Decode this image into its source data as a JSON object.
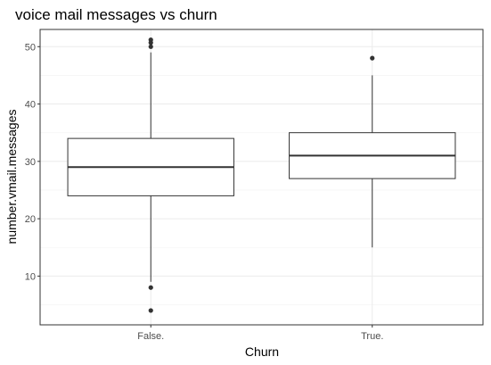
{
  "chart_data": {
    "type": "boxplot",
    "title": "voice mail messages vs churn",
    "xlabel": "Churn",
    "ylabel": "number.vmail.messages",
    "ylim": [
      1.5,
      53
    ],
    "y_ticks": [
      10,
      20,
      30,
      40,
      50
    ],
    "grid": true,
    "categories": [
      "False.",
      "True."
    ],
    "boxes": [
      {
        "category": "False.",
        "whisker_low": 9,
        "q1": 24,
        "median": 29,
        "q3": 34,
        "whisker_high": 49,
        "outliers": [
          4,
          8,
          50,
          50.7,
          51.2
        ]
      },
      {
        "category": "True.",
        "whisker_low": 15,
        "q1": 27,
        "median": 31,
        "q3": 35,
        "whisker_high": 45,
        "outliers": [
          48
        ]
      }
    ],
    "colors": {
      "panel_border": "#333333",
      "grid_major": "#ebebeb",
      "grid_minor": "#f5f5f5",
      "box_line": "#333333",
      "outlier": "#333333",
      "tick_label": "#4d4d4d"
    }
  }
}
